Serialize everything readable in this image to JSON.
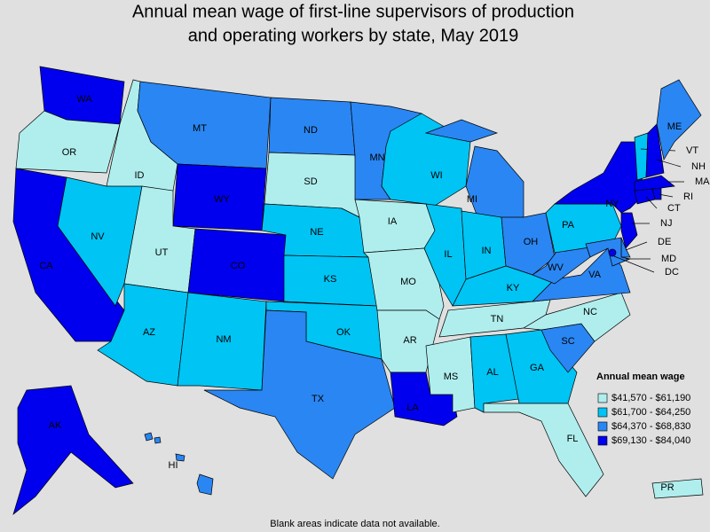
{
  "title_lines": [
    "Annual mean wage of first-line supervisors of production",
    "and operating workers by state, May 2019"
  ],
  "legend": {
    "title": "Annual mean wage",
    "entries": [
      {
        "label": "$41,570 - $61,190",
        "color": "#b0eeee"
      },
      {
        "label": "$61,700 - $64,250",
        "color": "#00c4f4"
      },
      {
        "label": "$64,370 - $68,830",
        "color": "#2a86f2"
      },
      {
        "label": "$69,130 - $84,040",
        "color": "#0000ee"
      }
    ]
  },
  "states": [
    {
      "label": "WA",
      "color": "#0000ee"
    },
    {
      "label": "OR",
      "color": "#b0eeee"
    },
    {
      "label": "CA",
      "color": "#0000ee"
    },
    {
      "label": "ID",
      "color": "#b0eeee"
    },
    {
      "label": "NV",
      "color": "#00c4f4"
    },
    {
      "label": "MT",
      "color": "#2a86f2"
    },
    {
      "label": "WY",
      "color": "#0000ee"
    },
    {
      "label": "UT",
      "color": "#b0eeee"
    },
    {
      "label": "CO",
      "color": "#0000ee"
    },
    {
      "label": "AZ",
      "color": "#00c4f4"
    },
    {
      "label": "NM",
      "color": "#00c4f4"
    },
    {
      "label": "ND",
      "color": "#2a86f2"
    },
    {
      "label": "SD",
      "color": "#b0eeee"
    },
    {
      "label": "NE",
      "color": "#00c4f4"
    },
    {
      "label": "KS",
      "color": "#00c4f4"
    },
    {
      "label": "OK",
      "color": "#00c4f4"
    },
    {
      "label": "TX",
      "color": "#2a86f2"
    },
    {
      "label": "MN",
      "color": "#2a86f2"
    },
    {
      "label": "IA",
      "color": "#b0eeee"
    },
    {
      "label": "MO",
      "color": "#b0eeee"
    },
    {
      "label": "AR",
      "color": "#b0eeee"
    },
    {
      "label": "LA",
      "color": "#0000ee"
    },
    {
      "label": "WI",
      "color": "#00c4f4"
    },
    {
      "label": "IL",
      "color": "#00c4f4"
    },
    {
      "label": "MI",
      "color": "#2a86f2"
    },
    {
      "label": "IN",
      "color": "#00c4f4"
    },
    {
      "label": "OH",
      "color": "#2a86f2"
    },
    {
      "label": "KY",
      "color": "#00c4f4"
    },
    {
      "label": "TN",
      "color": "#b0eeee"
    },
    {
      "label": "MS",
      "color": "#b0eeee"
    },
    {
      "label": "AL",
      "color": "#00c4f4"
    },
    {
      "label": "GA",
      "color": "#00c4f4"
    },
    {
      "label": "FL",
      "color": "#b0eeee"
    },
    {
      "label": "SC",
      "color": "#2a86f2"
    },
    {
      "label": "NC",
      "color": "#b0eeee"
    },
    {
      "label": "VA",
      "color": "#2a86f2"
    },
    {
      "label": "WV",
      "color": "#2a86f2"
    },
    {
      "label": "PA",
      "color": "#00c4f4"
    },
    {
      "label": "NY",
      "color": "#0000ee"
    },
    {
      "label": "NJ",
      "color": "#0000ee"
    },
    {
      "label": "DE",
      "color": "#2a86f2"
    },
    {
      "label": "MD",
      "color": "#2a86f2"
    },
    {
      "label": "DC",
      "color": "#0000ee"
    },
    {
      "label": "CT",
      "color": "#0000ee"
    },
    {
      "label": "RI",
      "color": "#0000ee"
    },
    {
      "label": "MA",
      "color": "#0000ee"
    },
    {
      "label": "VT",
      "color": "#00c4f4"
    },
    {
      "label": "NH",
      "color": "#0000ee"
    },
    {
      "label": "ME",
      "color": "#2a86f2"
    },
    {
      "label": "AK",
      "color": "#0000ee"
    },
    {
      "label": "HI",
      "color": "#2a86f2"
    },
    {
      "label": "PR",
      "color": "#b0eeee"
    }
  ],
  "footnote": "Blank areas indicate data not available."
}
